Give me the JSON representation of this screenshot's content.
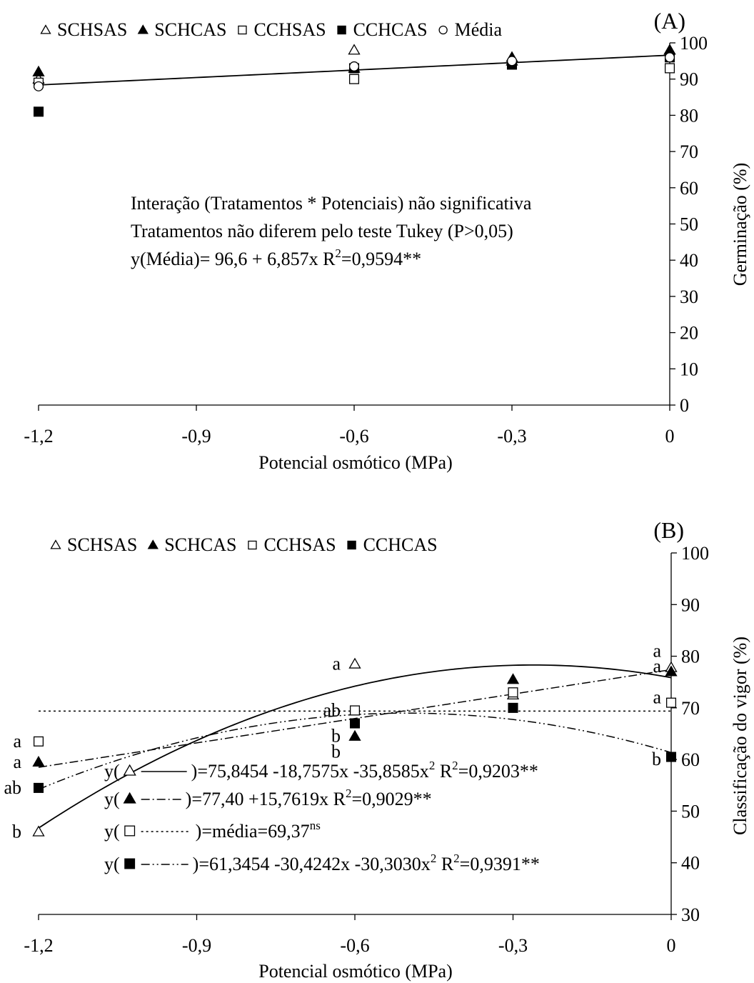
{
  "chart_data": [
    {
      "panel_label": "(A)",
      "type": "scatter",
      "xlabel": "Potencial osmótico (MPa)",
      "ylabel": "Germinação (%)",
      "xlim": [
        -1.2,
        0
      ],
      "ylim": [
        0,
        100
      ],
      "x_ticks": [
        -1.2,
        -0.9,
        -0.6,
        -0.3,
        0
      ],
      "x_tick_labels": [
        "-1,2",
        "-0,9",
        "-0,6",
        "-0,3",
        "0"
      ],
      "y_ticks": [
        0,
        10,
        20,
        30,
        40,
        50,
        60,
        70,
        80,
        90,
        100
      ],
      "y_tick_labels": [
        "0",
        "10",
        "20",
        "30",
        "40",
        "50",
        "60",
        "70",
        "80",
        "90",
        "100"
      ],
      "legend": [
        {
          "label": "SCHSAS",
          "marker": "triangle-open"
        },
        {
          "label": "SCHCAS",
          "marker": "triangle-filled"
        },
        {
          "label": "CCHSAS",
          "marker": "square-open"
        },
        {
          "label": "CCHCAS",
          "marker": "square-filled"
        },
        {
          "label": "Média",
          "marker": "circle-open"
        }
      ],
      "series": [
        {
          "name": "SCHSAS",
          "marker": "triangle-open",
          "x": [
            -1.2,
            -0.6,
            -0.3,
            0
          ],
          "y": [
            90,
            98,
            95,
            98
          ]
        },
        {
          "name": "SCHCAS",
          "marker": "triangle-filled",
          "x": [
            -1.2,
            -0.6,
            -0.3,
            0
          ],
          "y": [
            92,
            93,
            96,
            98
          ]
        },
        {
          "name": "CCHSAS",
          "marker": "square-open",
          "x": [
            -1.2,
            -0.6,
            -0.3,
            0
          ],
          "y": [
            89,
            90,
            94,
            93
          ]
        },
        {
          "name": "CCHCAS",
          "marker": "square-filled",
          "x": [
            -1.2,
            -0.6,
            -0.3,
            0
          ],
          "y": [
            81,
            93,
            94,
            96
          ]
        },
        {
          "name": "Média",
          "marker": "circle-open",
          "x": [
            -1.2,
            -0.6,
            -0.3,
            0
          ],
          "y": [
            88,
            93.5,
            95,
            96
          ]
        }
      ],
      "fit_lines": [
        {
          "style": "solid",
          "intercept": 96.6,
          "b1": 6.857,
          "b2": 0
        }
      ],
      "annotations": [
        "Interação (Tratamentos * Potenciais) não significativa",
        "Tratamentos não diferem pelo teste Tukey (P>0,05)"
      ],
      "equation": {
        "prefix": "y(Média)= 96,6 + 6,857x R",
        "sup": "2",
        "suffix": "=0,9594**"
      }
    },
    {
      "panel_label": "(B)",
      "type": "scatter",
      "xlabel": "Potencial osmótico (MPa)",
      "ylabel": "Classificação do vigor (%)",
      "xlim": [
        -1.2,
        0
      ],
      "ylim": [
        30,
        100
      ],
      "x_ticks": [
        -1.2,
        -0.9,
        -0.6,
        -0.3,
        0
      ],
      "x_tick_labels": [
        "-1,2",
        "-0,9",
        "-0,6",
        "-0,3",
        "0"
      ],
      "y_ticks": [
        30,
        40,
        50,
        60,
        70,
        80,
        90,
        100
      ],
      "y_tick_labels": [
        "30",
        "40",
        "50",
        "60",
        "70",
        "80",
        "90",
        "100"
      ],
      "legend": [
        {
          "label": "SCHSAS",
          "marker": "triangle-open"
        },
        {
          "label": "SCHCAS",
          "marker": "triangle-filled"
        },
        {
          "label": "CCHSAS",
          "marker": "square-open"
        },
        {
          "label": "CCHCAS",
          "marker": "square-filled"
        }
      ],
      "series": [
        {
          "name": "SCHSAS",
          "marker": "triangle-open",
          "x": [
            -1.2,
            -0.6,
            -0.3,
            0
          ],
          "y": [
            46,
            78.5,
            72.5,
            77.8
          ]
        },
        {
          "name": "SCHCAS",
          "marker": "triangle-filled",
          "x": [
            -1.2,
            -0.6,
            -0.3,
            0
          ],
          "y": [
            59.5,
            64.5,
            75.5,
            77
          ]
        },
        {
          "name": "CCHSAS",
          "marker": "square-open",
          "x": [
            -1.2,
            -0.6,
            -0.3,
            0
          ],
          "y": [
            63.5,
            69.5,
            73,
            71
          ]
        },
        {
          "name": "CCHCAS",
          "marker": "square-filled",
          "x": [
            -1.2,
            -0.6,
            -0.3,
            0
          ],
          "y": [
            54.5,
            67,
            70,
            60.5
          ]
        }
      ],
      "fit_lines": [
        {
          "style": "solid",
          "intercept": 75.8454,
          "b1": -18.7575,
          "b2": -35.8585
        },
        {
          "style": "dashdot",
          "intercept": 77.4,
          "b1": 15.7619,
          "b2": 0
        },
        {
          "style": "dotted",
          "intercept": 69.37,
          "b1": 0,
          "b2": 0
        },
        {
          "style": "dashdotdot",
          "intercept": 61.3454,
          "b1": -30.4242,
          "b2": -30.303
        }
      ],
      "letters": [
        {
          "text": "a",
          "x": -1.2,
          "y": 63.5
        },
        {
          "text": "a",
          "x": -1.2,
          "y": 59.5
        },
        {
          "text": "ab",
          "x": -1.2,
          "y": 54.5
        },
        {
          "text": "b",
          "x": -1.2,
          "y": 46
        },
        {
          "text": "a",
          "x": -0.6,
          "y": 78.5
        },
        {
          "text": "ab",
          "x": -0.6,
          "y": 69.5
        },
        {
          "text": "b",
          "x": -0.6,
          "y": 64.5
        },
        {
          "text": "b",
          "x": -0.6,
          "y": 61.5
        },
        {
          "text": "a",
          "x": 0,
          "y": 81
        },
        {
          "text": "a",
          "x": 0,
          "y": 78
        },
        {
          "text": "a",
          "x": 0,
          "y": 72
        },
        {
          "text": "b",
          "x": 0,
          "y": 60
        }
      ],
      "equations": [
        {
          "open": "y(",
          "symbol": "triangle-open",
          "close": ")=75,8454 -18,7575x -35,8585x",
          "sup": "2",
          "suffix": " R",
          "sup2": "2",
          "suffix2": "=0,9203**"
        },
        {
          "open": "y(",
          "symbol": "triangle-filled",
          "close": ")=77,40 +15,7619x  R",
          "sup": "2",
          "suffix": "=0,9029**",
          "sup2": "",
          "suffix2": ""
        },
        {
          "open": "y(",
          "symbol": "square-open",
          "close": ")=média=69,37",
          "sup": "ns",
          "suffix": "",
          "sup2": "",
          "suffix2": ""
        },
        {
          "open": "y(",
          "symbol": "square-filled",
          "close": ")=61,3454 -30,4242x -30,3030x",
          "sup": "2",
          "suffix": " R",
          "sup2": "2",
          "suffix2": "=0,9391**"
        }
      ]
    }
  ]
}
